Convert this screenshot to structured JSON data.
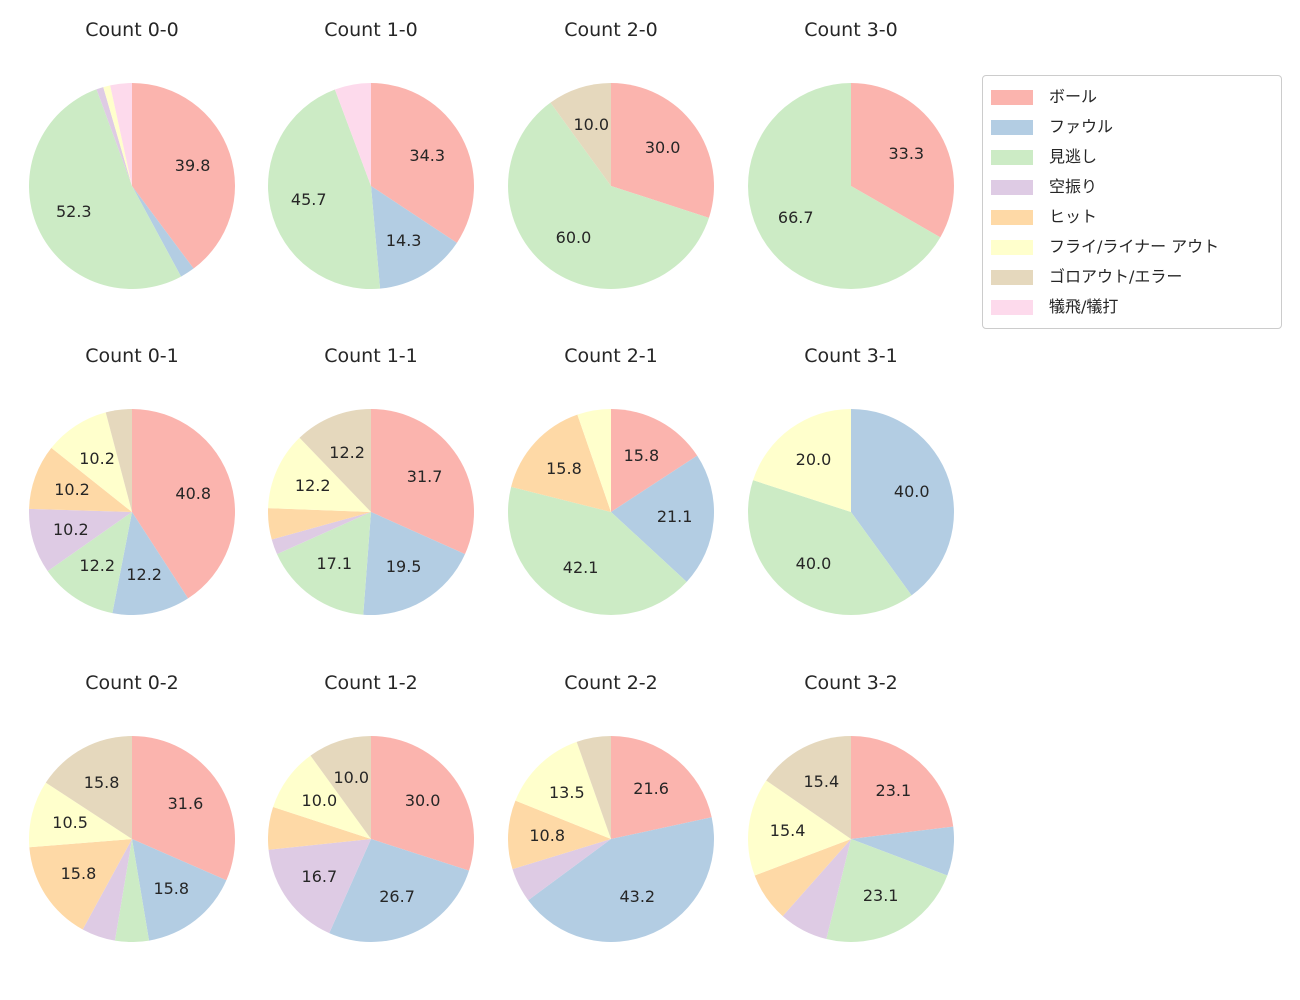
{
  "figure": {
    "background": "#ffffff",
    "text_color": "#262626"
  },
  "chart_data": {
    "type": "pie",
    "value_unit": "percent",
    "start_angle": "top",
    "direction": "clockwise",
    "label_decimal_places": 1,
    "label_min_pct": 10,
    "grid": {
      "rows": 3,
      "cols": 4
    },
    "legend": {
      "position": "top-right",
      "border_color": "#cccccc",
      "items": [
        {
          "key": "ball",
          "label": "ボール",
          "color": "#fbb4ae"
        },
        {
          "key": "foul",
          "label": "ファウル",
          "color": "#b3cde3"
        },
        {
          "key": "called_strike",
          "label": "見逃し",
          "color": "#ccebc5"
        },
        {
          "key": "swinging_strike",
          "label": "空振り",
          "color": "#decbe4"
        },
        {
          "key": "hit",
          "label": "ヒット",
          "color": "#fed9a6"
        },
        {
          "key": "fly_liner_out",
          "label": "フライ/ライナー アウト",
          "color": "#ffffcc"
        },
        {
          "key": "ground_out_error",
          "label": "ゴロアウト/エラー",
          "color": "#e5d8bd"
        },
        {
          "key": "sacrifice",
          "label": "犠飛/犠打",
          "color": "#fddaec"
        }
      ]
    },
    "charts": [
      {
        "title": "Count 0-0",
        "slices": [
          {
            "key": "ball",
            "value": 39.8
          },
          {
            "key": "foul",
            "value": 2.3
          },
          {
            "key": "called_strike",
            "value": 52.3
          },
          {
            "key": "swinging_strike",
            "value": 1.1
          },
          {
            "key": "fly_liner_out",
            "value": 1.1
          },
          {
            "key": "sacrifice",
            "value": 3.4
          }
        ]
      },
      {
        "title": "Count 1-0",
        "slices": [
          {
            "key": "ball",
            "value": 34.3
          },
          {
            "key": "foul",
            "value": 14.3
          },
          {
            "key": "called_strike",
            "value": 45.7
          },
          {
            "key": "sacrifice",
            "value": 5.7
          }
        ]
      },
      {
        "title": "Count 2-0",
        "slices": [
          {
            "key": "ball",
            "value": 30.0
          },
          {
            "key": "called_strike",
            "value": 60.0
          },
          {
            "key": "ground_out_error",
            "value": 10.0
          }
        ]
      },
      {
        "title": "Count 3-0",
        "slices": [
          {
            "key": "ball",
            "value": 33.3
          },
          {
            "key": "called_strike",
            "value": 66.7
          }
        ]
      },
      {
        "title": "Count 0-1",
        "slices": [
          {
            "key": "ball",
            "value": 40.8
          },
          {
            "key": "foul",
            "value": 12.2
          },
          {
            "key": "called_strike",
            "value": 12.2
          },
          {
            "key": "swinging_strike",
            "value": 10.2
          },
          {
            "key": "hit",
            "value": 10.2
          },
          {
            "key": "fly_liner_out",
            "value": 10.2
          },
          {
            "key": "ground_out_error",
            "value": 4.1
          }
        ]
      },
      {
        "title": "Count 1-1",
        "slices": [
          {
            "key": "ball",
            "value": 31.7
          },
          {
            "key": "foul",
            "value": 19.5
          },
          {
            "key": "called_strike",
            "value": 17.1
          },
          {
            "key": "swinging_strike",
            "value": 2.4
          },
          {
            "key": "hit",
            "value": 4.9
          },
          {
            "key": "fly_liner_out",
            "value": 12.2
          },
          {
            "key": "ground_out_error",
            "value": 12.2
          }
        ]
      },
      {
        "title": "Count 2-1",
        "slices": [
          {
            "key": "ball",
            "value": 15.8
          },
          {
            "key": "foul",
            "value": 21.1
          },
          {
            "key": "called_strike",
            "value": 42.1
          },
          {
            "key": "hit",
            "value": 15.8
          },
          {
            "key": "fly_liner_out",
            "value": 5.3
          }
        ]
      },
      {
        "title": "Count 3-1",
        "slices": [
          {
            "key": "foul",
            "value": 40.0
          },
          {
            "key": "called_strike",
            "value": 40.0
          },
          {
            "key": "fly_liner_out",
            "value": 20.0
          }
        ]
      },
      {
        "title": "Count 0-2",
        "slices": [
          {
            "key": "ball",
            "value": 31.6
          },
          {
            "key": "foul",
            "value": 15.8
          },
          {
            "key": "called_strike",
            "value": 5.3
          },
          {
            "key": "swinging_strike",
            "value": 5.3
          },
          {
            "key": "hit",
            "value": 15.8
          },
          {
            "key": "fly_liner_out",
            "value": 10.5
          },
          {
            "key": "ground_out_error",
            "value": 15.8
          }
        ]
      },
      {
        "title": "Count 1-2",
        "slices": [
          {
            "key": "ball",
            "value": 30.0
          },
          {
            "key": "foul",
            "value": 26.7
          },
          {
            "key": "swinging_strike",
            "value": 16.7
          },
          {
            "key": "hit",
            "value": 6.7
          },
          {
            "key": "fly_liner_out",
            "value": 10.0
          },
          {
            "key": "ground_out_error",
            "value": 10.0
          }
        ]
      },
      {
        "title": "Count 2-2",
        "slices": [
          {
            "key": "ball",
            "value": 21.6
          },
          {
            "key": "foul",
            "value": 43.2
          },
          {
            "key": "swinging_strike",
            "value": 5.4
          },
          {
            "key": "hit",
            "value": 10.8
          },
          {
            "key": "fly_liner_out",
            "value": 13.5
          },
          {
            "key": "ground_out_error",
            "value": 5.4
          }
        ]
      },
      {
        "title": "Count 3-2",
        "slices": [
          {
            "key": "ball",
            "value": 23.1
          },
          {
            "key": "foul",
            "value": 7.7
          },
          {
            "key": "called_strike",
            "value": 23.1
          },
          {
            "key": "swinging_strike",
            "value": 7.7
          },
          {
            "key": "hit",
            "value": 7.7
          },
          {
            "key": "fly_liner_out",
            "value": 15.4
          },
          {
            "key": "ground_out_error",
            "value": 15.4
          }
        ]
      }
    ]
  }
}
